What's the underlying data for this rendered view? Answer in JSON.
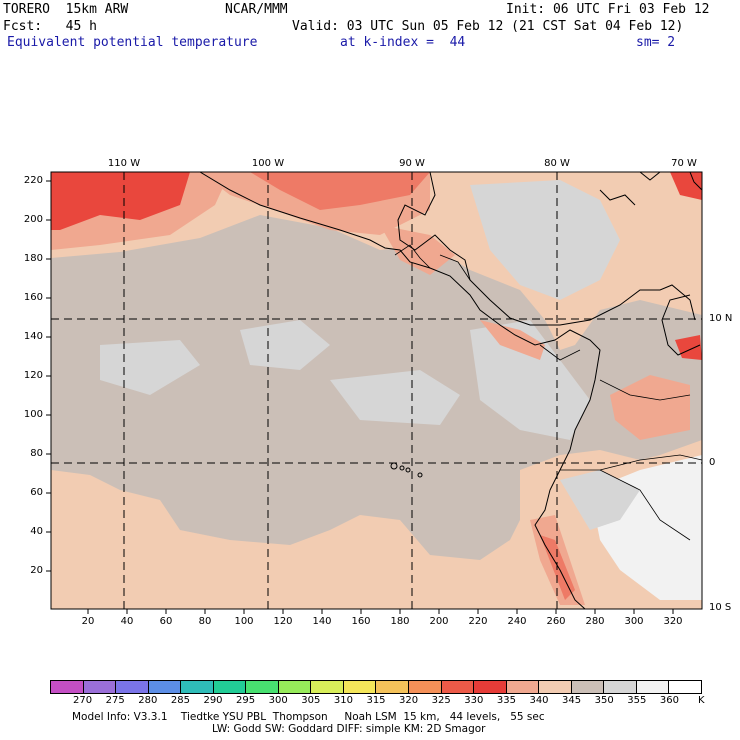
{
  "header": {
    "model": "TORERO  15km ARW",
    "center": "NCAR/MMM",
    "init": "Init: 06 UTC Fri 03 Feb 12",
    "fcst": "Fcst:   45 h",
    "valid": "Valid: 03 UTC Sun 05 Feb 12 (21 CST Sat 04 Feb 12)",
    "field": "Equivalent potential temperature",
    "level": "at k-index =  44",
    "smooth": "sm= 2"
  },
  "map": {
    "lon_labels": [
      "110 W",
      "100 W",
      "90 W",
      "80 W",
      "70 W"
    ],
    "lat_labels": [
      "10 N",
      "0",
      "10 S"
    ],
    "y_ticks": [
      "220",
      "200",
      "180",
      "160",
      "140",
      "120",
      "100",
      "80",
      "60",
      "40",
      "20"
    ],
    "x_ticks": [
      "20",
      "40",
      "60",
      "80",
      "100",
      "120",
      "140",
      "160",
      "180",
      "200",
      "220",
      "240",
      "260",
      "280",
      "300",
      "320"
    ],
    "colors": {
      "warm_light": "#f2ccb2",
      "gray_mid": "#cbbfb7",
      "gray_light": "#d6d6d6",
      "white_area": "#f2f2f2",
      "salmon": "#f0a890",
      "red_orange": "#ee7a66",
      "red": "#e9473d"
    }
  },
  "colorbar": {
    "labels": [
      "270",
      "275",
      "280",
      "285",
      "290",
      "295",
      "300",
      "305",
      "310",
      "315",
      "320",
      "325",
      "330",
      "335",
      "340",
      "345",
      "350",
      "355",
      "360"
    ],
    "unit": "K",
    "colors": [
      "#c44fc4",
      "#9a6fd8",
      "#7a74e8",
      "#5c8ee6",
      "#2fbcb8",
      "#22cc96",
      "#48e070",
      "#96ea5a",
      "#d8ee5a",
      "#f4e65a",
      "#f4c25a",
      "#f49058",
      "#ec5a48",
      "#e63c38",
      "#f0a890",
      "#f2ccb2",
      "#cbbfb7",
      "#d6d6d6",
      "#f2f2f2",
      "#ffffff"
    ]
  },
  "footer": {
    "line1": "Model Info: V3.3.1    Tiedtke YSU PBL  Thompson     Noah LSM  15 km,   44 levels,   55 sec",
    "line2": "LW: Godd SW: Goddard DIFF: simple KM: 2D Smagor"
  }
}
